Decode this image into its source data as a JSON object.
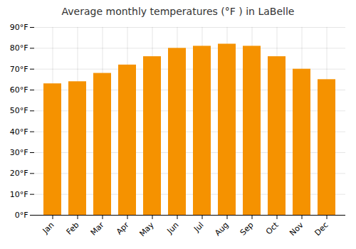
{
  "chart_data": {
    "type": "bar",
    "title": "Average monthly temperatures (°F ) in LaBelle",
    "categories": [
      "Jan",
      "Feb",
      "Mar",
      "Apr",
      "May",
      "Jun",
      "Jul",
      "Aug",
      "Sep",
      "Oct",
      "Nov",
      "Dec"
    ],
    "values": [
      63,
      64,
      68,
      72,
      76,
      80,
      81,
      82,
      81,
      76,
      70,
      65
    ],
    "color": "#F59200",
    "ylim": [
      0,
      90
    ],
    "yticks": [
      {
        "value": 0,
        "label": "0°F"
      },
      {
        "value": 10,
        "label": "10°F"
      },
      {
        "value": 20,
        "label": "20°F"
      },
      {
        "value": 30,
        "label": "30°F"
      },
      {
        "value": 40,
        "label": "40°F"
      },
      {
        "value": 50,
        "label": "50°F"
      },
      {
        "value": 60,
        "label": "60°F"
      },
      {
        "value": 70,
        "label": "70°F"
      },
      {
        "value": 80,
        "label": "80°F"
      },
      {
        "value": 90,
        "label": "90°F"
      }
    ],
    "grid": true
  }
}
